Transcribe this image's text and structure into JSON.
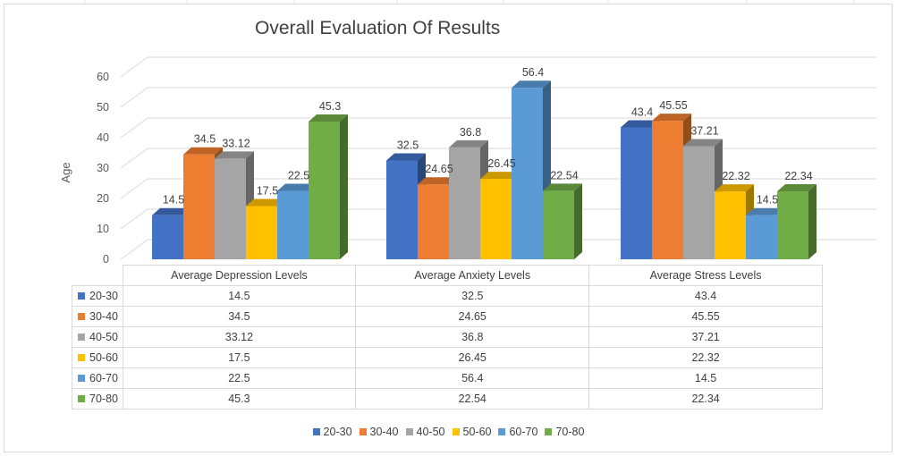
{
  "chart_data": {
    "type": "bar",
    "title": "Overall Evaluation Of Results",
    "ylabel": "Age",
    "xlabel": "",
    "ylim": [
      0,
      60
    ],
    "yticks": [
      0,
      10,
      20,
      30,
      40,
      50,
      60
    ],
    "grid": true,
    "legend": "bottom",
    "data_table": true,
    "style": "3d-clustered-column",
    "categories": [
      "Average Depression Levels",
      "Average Anxiety Levels",
      "Average Stress Levels"
    ],
    "series": [
      {
        "name": "20-30",
        "color": "#4472C4",
        "values": [
          14.5,
          32.5,
          43.4
        ]
      },
      {
        "name": "30-40",
        "color": "#ED7D31",
        "values": [
          34.5,
          24.65,
          45.55
        ]
      },
      {
        "name": "40-50",
        "color": "#A5A5A5",
        "values": [
          33.12,
          36.8,
          37.21
        ]
      },
      {
        "name": "50-60",
        "color": "#FFC000",
        "values": [
          17.5,
          26.45,
          22.32
        ]
      },
      {
        "name": "60-70",
        "color": "#5B9BD5",
        "values": [
          22.5,
          56.4,
          14.5
        ]
      },
      {
        "name": "70-80",
        "color": "#70AD47",
        "values": [
          45.3,
          22.54,
          22.34
        ]
      }
    ]
  }
}
